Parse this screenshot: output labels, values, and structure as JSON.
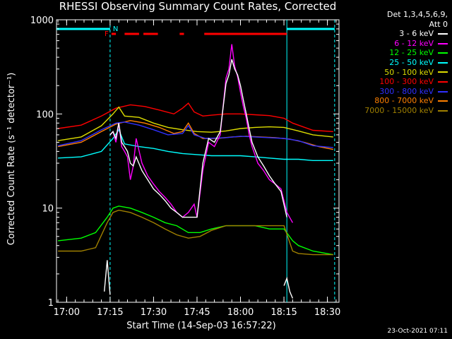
{
  "chart_data": {
    "type": "line",
    "title": "RHESSI Observing Summary Count Rates, Corrected",
    "ylabel": "Corrected Count Rate (s⁻¹ detector⁻¹)",
    "xlabel": "Start Time (14-Sep-03 16:57:22)",
    "y_scale": "log",
    "ylim": [
      1,
      1000
    ],
    "y_ticks": [
      "1",
      "10",
      "100",
      "1000"
    ],
    "x_ticks": [
      "17:00",
      "17:15",
      "17:30",
      "17:45",
      "18:00",
      "18:15",
      "18:30"
    ],
    "x_minutes": [
      0,
      15,
      30,
      45,
      60,
      75,
      90
    ],
    "xlim_minutes": [
      -3.5,
      94
    ],
    "legend": {
      "header": [
        "Det 1,3,4,5,6,9,",
        "Att 0"
      ],
      "entries": [
        {
          "label": "3 - 6 keV",
          "color": "#ffffff"
        },
        {
          "label": "6 - 12 keV",
          "color": "#ff00ff"
        },
        {
          "label": "12 - 25 keV",
          "color": "#00ff00"
        },
        {
          "label": "25 - 50 keV",
          "color": "#00ffff"
        },
        {
          "label": "50 - 100 keV",
          "color": "#dcdc00"
        },
        {
          "label": "100 - 300 keV",
          "color": "#ff0000"
        },
        {
          "label": "300 - 800 keV",
          "color": "#3030ff"
        },
        {
          "label": "800 - 7000 keV",
          "color": "#ff8000"
        },
        {
          "label": "7000 - 15000 keV",
          "color": "#a08000"
        }
      ]
    },
    "series": [
      {
        "name": "100 - 300 keV",
        "color": "#ff0000",
        "x": [
          -3,
          5,
          12,
          17,
          22,
          27,
          32,
          37,
          40,
          42,
          44,
          47,
          50,
          55,
          60,
          65,
          70,
          75,
          78,
          85,
          92
        ],
        "y": [
          70,
          76,
          95,
          115,
          125,
          120,
          110,
          100,
          115,
          130,
          105,
          95,
          97,
          100,
          100,
          98,
          96,
          90,
          80,
          67,
          65
        ]
      },
      {
        "name": "50 - 100 keV",
        "color": "#dcdc00",
        "x": [
          -3,
          5,
          12,
          16,
          18,
          20,
          25,
          30,
          35,
          40,
          45,
          50,
          55,
          60,
          65,
          70,
          75,
          80,
          85,
          92
        ],
        "y": [
          52,
          57,
          75,
          100,
          118,
          95,
          92,
          80,
          72,
          68,
          65,
          64,
          66,
          70,
          72,
          73,
          72,
          66,
          60,
          57
        ]
      },
      {
        "name": "800 - 7000 keV",
        "color": "#ff8000",
        "x": [
          -3,
          5,
          12,
          17,
          22,
          27,
          32,
          37,
          40,
          42,
          44,
          47,
          52,
          57,
          62,
          67,
          72,
          77,
          82,
          87,
          92
        ],
        "y": [
          45,
          50,
          65,
          78,
          85,
          80,
          72,
          62,
          65,
          80,
          62,
          55,
          55,
          57,
          58,
          57,
          56,
          54,
          50,
          45,
          42
        ]
      },
      {
        "name": "300 - 800 keV",
        "color": "#3030ff",
        "x": [
          -3,
          5,
          12,
          17,
          20,
          25,
          30,
          35,
          40,
          42,
          44,
          48,
          55,
          60,
          65,
          70,
          75,
          80,
          85,
          92
        ],
        "y": [
          46,
          52,
          68,
          80,
          82,
          76,
          68,
          60,
          62,
          75,
          60,
          55,
          56,
          58,
          57,
          56,
          55,
          52,
          46,
          44
        ]
      },
      {
        "name": "25 - 50 keV",
        "color": "#00ffff",
        "x": [
          -3,
          5,
          12,
          16,
          18,
          20,
          25,
          30,
          35,
          40,
          45,
          50,
          55,
          60,
          65,
          70,
          75,
          80,
          85,
          92
        ],
        "y": [
          34,
          35,
          40,
          55,
          68,
          48,
          45,
          43,
          40,
          38,
          37,
          36,
          36,
          36,
          35,
          34,
          33,
          33,
          32,
          32
        ]
      },
      {
        "name": "6 - 12 keV",
        "color": "#ff00ff",
        "x": [
          15,
          16,
          17,
          18,
          19,
          20,
          21,
          22,
          23,
          24,
          26,
          28,
          30,
          32,
          34,
          36,
          38,
          40,
          42,
          44,
          45,
          47,
          49,
          51,
          53,
          55,
          56,
          57,
          58,
          59,
          60,
          61,
          62,
          63,
          64,
          66,
          68,
          70,
          72,
          74,
          76,
          78
        ],
        "y": [
          60,
          65,
          50,
          80,
          45,
          40,
          35,
          20,
          28,
          55,
          30,
          22,
          18,
          15,
          13,
          11,
          9,
          8,
          9,
          11,
          8,
          25,
          50,
          45,
          60,
          240,
          300,
          550,
          320,
          250,
          170,
          120,
          90,
          60,
          45,
          30,
          25,
          20,
          18,
          16,
          9,
          7
        ]
      },
      {
        "name": "3 - 6 keV",
        "color": "#ffffff",
        "x": [
          15,
          16,
          17,
          18,
          19,
          20,
          21,
          22,
          23,
          24,
          26,
          28,
          30,
          32,
          34,
          36,
          38,
          40,
          42,
          44,
          45,
          47,
          49,
          51,
          53,
          55,
          56,
          57,
          58,
          59,
          60,
          61,
          62,
          63,
          64,
          66,
          68,
          70,
          72,
          74,
          76
        ],
        "y": [
          60,
          65,
          55,
          80,
          50,
          45,
          40,
          30,
          28,
          35,
          25,
          20,
          16,
          14,
          12,
          10,
          9,
          8,
          8,
          8,
          8,
          30,
          55,
          50,
          65,
          210,
          260,
          380,
          300,
          260,
          200,
          140,
          100,
          70,
          50,
          35,
          28,
          22,
          18,
          15,
          8
        ]
      },
      {
        "name": "12 - 25 keV",
        "color": "#00ff00",
        "x": [
          -3,
          5,
          10,
          14,
          16,
          18,
          22,
          26,
          30,
          34,
          38,
          42,
          46,
          50,
          55,
          60,
          65,
          70,
          75,
          78,
          80,
          85,
          92
        ],
        "y": [
          4.5,
          4.8,
          5.5,
          8,
          10,
          10.5,
          10,
          9,
          8,
          7,
          6.5,
          5.5,
          5.5,
          6,
          6.5,
          6.5,
          6.5,
          6,
          6,
          4.5,
          4,
          3.5,
          3.2
        ]
      },
      {
        "name": "7000 - 15000 keV",
        "color": "#a08000",
        "x": [
          -3,
          5,
          10,
          14,
          16,
          18,
          22,
          26,
          30,
          34,
          38,
          42,
          46,
          50,
          55,
          60,
          65,
          70,
          75,
          78,
          80,
          85,
          92
        ],
        "y": [
          3.5,
          3.5,
          3.8,
          7,
          9,
          9.5,
          9,
          8,
          7,
          6,
          5.2,
          4.8,
          5,
          5.8,
          6.5,
          6.5,
          6.5,
          6.5,
          6.5,
          3.5,
          3.3,
          3.2,
          3.2
        ]
      },
      {
        "name": "3 - 6 keV (low segment A)",
        "color": "#ffffff",
        "x": [
          13,
          14,
          15
        ],
        "y": [
          1.3,
          2.8,
          1.2
        ]
      },
      {
        "name": "3 - 6 keV (low segment B)",
        "color": "#ffffff",
        "x": [
          75,
          76,
          77,
          78
        ],
        "y": [
          1.5,
          1.8,
          1.3,
          1.1
        ]
      }
    ],
    "flags": {
      "F_label": "F",
      "N_label": "N",
      "flare_bars_minutes": [
        [
          15.5,
          17
        ],
        [
          20,
          25
        ],
        [
          26.5,
          31.5
        ],
        [
          39,
          40.5
        ],
        [
          47.5,
          76
        ]
      ],
      "night_bars_minutes": [
        [
          -3.5,
          15
        ],
        [
          76,
          92.5
        ]
      ]
    },
    "timestamp": "23-Oct-2021 07:11"
  }
}
